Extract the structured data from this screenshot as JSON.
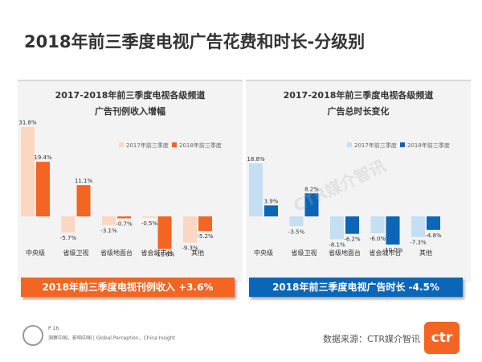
{
  "slide": {
    "title": "2018年前三季度电视广告花费和时长-分级别"
  },
  "colors": {
    "orange_light": "#fbd7c1",
    "orange": "#f26522",
    "blue_light": "#c5dff2",
    "blue": "#0b66b7"
  },
  "chart_data": [
    {
      "type": "bar",
      "title_line1": "2017-2018年前三季度电视各级频道",
      "title_line2": "广告刊例收入增幅",
      "categories": [
        "中央级",
        "省级卫视",
        "省级地面台",
        "省会城市台",
        "其他"
      ],
      "series": [
        {
          "name": "2017年前三季度",
          "values": [
            31.8,
            -5.7,
            -3.1,
            -0.5,
            -9.3
          ],
          "labels": [
            "31.8%",
            "-5.7%",
            "-3.1%",
            "-0.5%",
            "-9.3%"
          ]
        },
        {
          "name": "2018年前三季度",
          "values": [
            19.4,
            11.1,
            -0.7,
            -11.6,
            -5.2
          ],
          "labels": [
            "19.4%",
            "11.1%",
            "-0.7%",
            "-11.6%",
            "-5.2%"
          ]
        }
      ],
      "legend_position": "top-right"
    },
    {
      "type": "bar",
      "title_line1": "2017-2018年前三季度电视各级频道",
      "title_line2": "广告总时长变化",
      "categories": [
        "中央级",
        "省级卫视",
        "省级地面台",
        "省会城市台",
        "其他"
      ],
      "series": [
        {
          "name": "2017年前三季度",
          "values": [
            18.8,
            -3.5,
            -8.1,
            -6.0,
            -7.3
          ],
          "labels": [
            "18.8%",
            "-3.5%",
            "-8.1%",
            "-6.0%",
            "-7.3%"
          ]
        },
        {
          "name": "2018年前三季度",
          "values": [
            3.9,
            8.2,
            -6.2,
            -10.0,
            -4.8
          ],
          "labels": [
            "3.9%",
            "8.2%",
            "-6.2%",
            "-10.0%",
            "-4.8%"
          ]
        }
      ],
      "legend_position": "top-right"
    }
  ],
  "banners": {
    "left": "2018年前三季度电视刊例收入 +3.6%",
    "right": "2018年前三季度电视广告时长 -4.5%"
  },
  "footer": {
    "page": "P 16",
    "tagline": "洞察中国，影响中国 | Global Perception，China Insight",
    "source": "数据来源：CTR媒介智讯",
    "logo_text": "ctr",
    "watermark_text": "CTR媒介智讯"
  }
}
